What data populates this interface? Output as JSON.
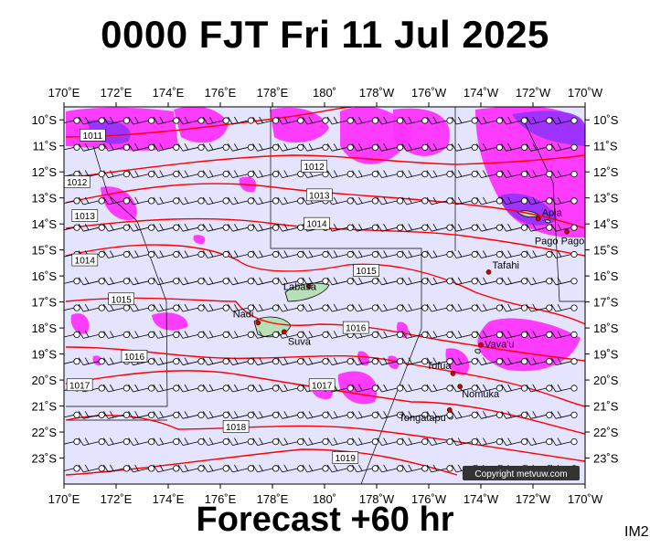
{
  "title": "0000 FJT Fri 11 Jul 2025",
  "footer": "Forecast +60 hr",
  "chart_code": "IM2",
  "copyright": "Copyright metvuw.com",
  "map": {
    "lon_labels": [
      "170˚E",
      "172˚E",
      "174˚E",
      "176˚E",
      "178˚E",
      "180˚",
      "178˚W",
      "176˚W",
      "174˚W",
      "172˚W",
      "170˚W"
    ],
    "lat_labels": [
      "10˚S",
      "11˚S",
      "12˚S",
      "13˚S",
      "14˚S",
      "15˚S",
      "16˚S",
      "17˚S",
      "18˚S",
      "19˚S",
      "20˚S",
      "21˚S",
      "22˚S",
      "23˚S"
    ],
    "colors": {
      "ocean": "#e4e4ff",
      "isobar": "#ff0000",
      "rain_light": "#ff33ff",
      "rain_heavy": "#9933ff",
      "land": "#b8e0b8"
    },
    "isobars": [
      {
        "value": "1011",
        "lon": 171.1,
        "lat": -10.6
      },
      {
        "value": "1012",
        "lon": 170.5,
        "lat": -12.4
      },
      {
        "value": "1012",
        "lon": 179.6,
        "lat": -11.8
      },
      {
        "value": "1013",
        "lon": 170.8,
        "lat": -13.7
      },
      {
        "value": "1013",
        "lon": 179.8,
        "lat": -12.9
      },
      {
        "value": "1014",
        "lon": 170.8,
        "lat": -15.4
      },
      {
        "value": "1014",
        "lon": 179.7,
        "lat": -14.0
      },
      {
        "value": "1015",
        "lon": 172.2,
        "lat": -16.9
      },
      {
        "value": "1015",
        "lon": -178.4,
        "lat": -15.8
      },
      {
        "value": "1016",
        "lon": 172.7,
        "lat": -19.1
      },
      {
        "value": "1016",
        "lon": -178.8,
        "lat": -18.0
      },
      {
        "value": "1017",
        "lon": 170.6,
        "lat": -20.2
      },
      {
        "value": "1017",
        "lon": 179.9,
        "lat": -20.2
      },
      {
        "value": "1018",
        "lon": 176.6,
        "lat": -21.8
      },
      {
        "value": "1019",
        "lon": -179.2,
        "lat": -23.0
      }
    ],
    "places": [
      {
        "name": "Apia",
        "lon": -171.8,
        "lat": -13.8
      },
      {
        "name": "Pago Pago",
        "lon": -170.7,
        "lat": -14.3
      },
      {
        "name": "Tafahi",
        "lon": -173.7,
        "lat": -15.85
      },
      {
        "name": "Labasa",
        "lon": 179.4,
        "lat": -16.4
      },
      {
        "name": "Nadi",
        "lon": 177.45,
        "lat": -17.8
      },
      {
        "name": "Suva",
        "lon": 178.45,
        "lat": -18.15
      },
      {
        "name": "Vava'u",
        "lon": -174.0,
        "lat": -18.65
      },
      {
        "name": "Tofua",
        "lon": -175.07,
        "lat": -19.75
      },
      {
        "name": "Nomuka",
        "lon": -174.8,
        "lat": -20.25
      },
      {
        "name": "Tongatapu",
        "lon": -175.2,
        "lat": -21.15
      }
    ]
  }
}
